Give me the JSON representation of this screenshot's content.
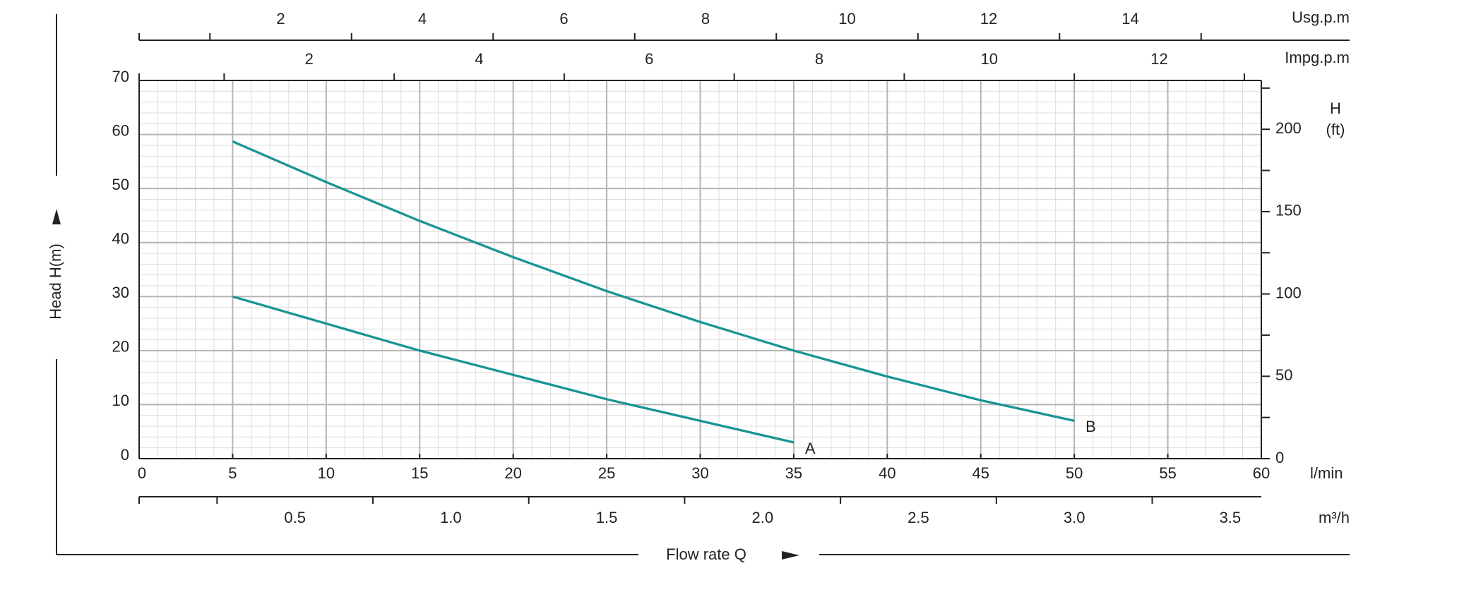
{
  "chart_data": {
    "type": "line",
    "ylabel": "Head H(m)",
    "xlabel": "Flow rate Q",
    "xunit": "l/min",
    "y2label": "H",
    "y2unit": "(ft)",
    "xlim": [
      0,
      60
    ],
    "xticks": [
      0,
      5,
      10,
      15,
      20,
      25,
      30,
      35,
      40,
      45,
      50,
      55,
      60
    ],
    "xminor": [
      0,
      1,
      2,
      3,
      4,
      5,
      6,
      7,
      8,
      9,
      10,
      11,
      12,
      13,
      14,
      15,
      16,
      17,
      18,
      19,
      20,
      21,
      22,
      23,
      24,
      25,
      26,
      27,
      28,
      29,
      30,
      31,
      32,
      33,
      34,
      35,
      36,
      37,
      38,
      39,
      40,
      41,
      42,
      43,
      44,
      45,
      46,
      47,
      48,
      49,
      50,
      51,
      52,
      53,
      54,
      55,
      56,
      57,
      58,
      59,
      60
    ],
    "ylim": [
      0,
      70
    ],
    "yticks": [
      0,
      10,
      20,
      30,
      40,
      50,
      60,
      70
    ],
    "yminor": [
      0,
      2,
      4,
      6,
      8,
      10,
      12,
      14,
      16,
      18,
      20,
      22,
      24,
      26,
      28,
      30,
      32,
      34,
      36,
      38,
      40,
      42,
      44,
      46,
      48,
      50,
      52,
      54,
      56,
      58,
      60,
      62,
      64,
      66,
      68,
      70
    ],
    "y2lim": [
      0,
      229.66
    ],
    "y2ticks": [
      0,
      50,
      100,
      150,
      200
    ],
    "y2minor": [
      25,
      75,
      125,
      175,
      225
    ],
    "grid": true,
    "secondary_axes": [
      {
        "label": "Usg.p.m",
        "position": "top",
        "lim": [
          0,
          15.85
        ],
        "ticks": [
          2,
          4,
          6,
          8,
          10,
          12,
          14
        ],
        "minor_ticks": [
          1,
          3,
          5,
          7,
          9,
          11,
          13,
          15
        ]
      },
      {
        "label": "Impg.p.m",
        "position": "frame-top",
        "lim": [
          0,
          13.2
        ],
        "ticks": [
          2,
          4,
          6,
          8,
          10,
          12
        ],
        "minor_ticks": [
          1,
          3,
          5,
          7,
          9,
          11,
          13
        ]
      },
      {
        "label": "m³/h",
        "position": "bottom",
        "lim": [
          0,
          3.6
        ],
        "ticks": [
          0.5,
          {
            "value": 1,
            "label": "1.0"
          },
          1.5,
          {
            "value": 2,
            "label": "2.0"
          },
          2.5,
          {
            "value": 3,
            "label": "3.0"
          },
          3.5
        ],
        "minor_ticks": [
          0.25,
          0.75,
          1.25,
          1.75,
          2.25,
          2.75,
          3.25
        ]
      }
    ],
    "series": [
      {
        "name": "A",
        "color": "#1a9494",
        "x": [
          5,
          10,
          15,
          20,
          25,
          30,
          35
        ],
        "values": [
          30,
          25,
          20,
          15.5,
          11,
          7,
          3
        ]
      },
      {
        "name": "B",
        "color": "#1a9494",
        "x": [
          5,
          10,
          15,
          20,
          25,
          30,
          35,
          40,
          45,
          50
        ],
        "values": [
          58.7,
          51.2,
          44,
          37.3,
          31,
          25.3,
          20,
          15.2,
          10.8,
          7
        ]
      }
    ]
  }
}
